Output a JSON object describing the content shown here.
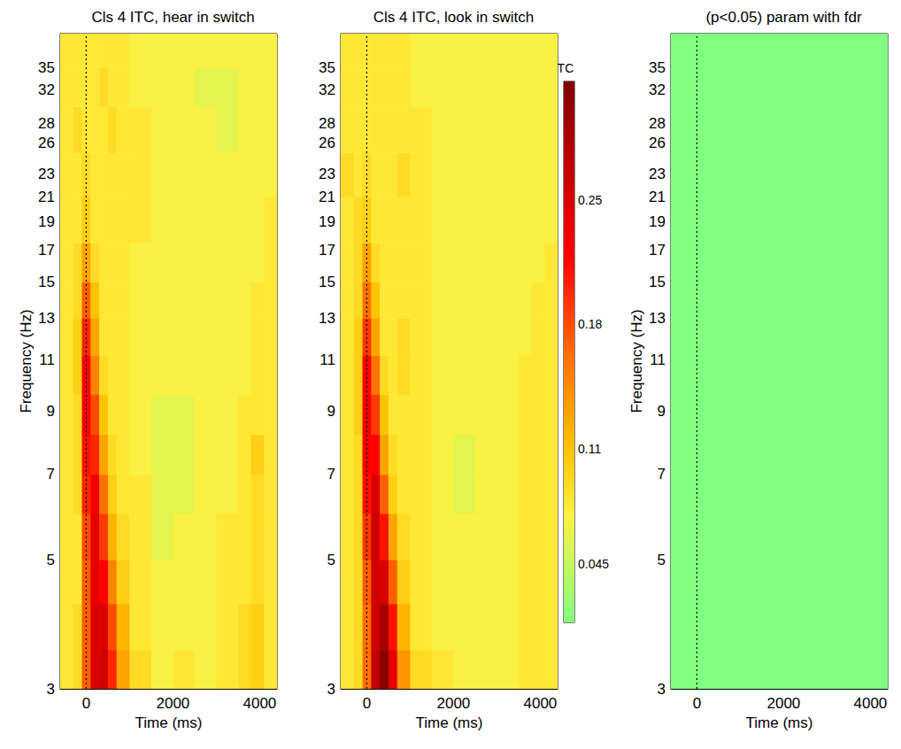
{
  "chart_data": [
    {
      "type": "heatmap",
      "title": "Cls 4 ITC, hear in switch",
      "x_label": "Time (ms)",
      "y_label": "Frequency (Hz)",
      "xlim": [
        -600,
        4400
      ],
      "xticks": [
        0,
        2000,
        4000
      ],
      "ylim": [
        3,
        40
      ],
      "yticks": [
        3,
        5,
        7,
        9,
        11,
        13,
        15,
        17,
        19,
        21,
        23,
        26,
        28,
        32,
        35
      ],
      "log": "y",
      "vlines": [
        0
      ],
      "x_edges": [
        -600,
        -300,
        -100,
        100,
        300,
        500,
        700,
        1000,
        1500,
        2000,
        2500,
        3000,
        3500,
        3800,
        4100,
        4400
      ],
      "y_edges": [
        3,
        3.5,
        4.2,
        5,
        6,
        7,
        8.2,
        9.6,
        11.2,
        13,
        15,
        17.5,
        21,
        25,
        30,
        35,
        40
      ],
      "cells": [
        [
          0.08,
          0.09,
          0.17,
          0.25,
          0.26,
          0.2,
          0.13,
          0.09,
          0.07,
          0.08,
          0.07,
          0.08,
          0.09,
          0.1,
          0.08
        ],
        [
          0.08,
          0.09,
          0.17,
          0.25,
          0.25,
          0.18,
          0.12,
          0.08,
          0.07,
          0.07,
          0.07,
          0.08,
          0.09,
          0.1,
          0.08
        ],
        [
          0.08,
          0.08,
          0.17,
          0.24,
          0.22,
          0.15,
          0.1,
          0.08,
          0.07,
          0.07,
          0.07,
          0.08,
          0.08,
          0.09,
          0.08
        ],
        [
          0.08,
          0.08,
          0.18,
          0.24,
          0.19,
          0.12,
          0.09,
          0.08,
          0.06,
          0.07,
          0.07,
          0.08,
          0.08,
          0.09,
          0.08
        ],
        [
          0.08,
          0.09,
          0.2,
          0.23,
          0.16,
          0.1,
          0.08,
          0.08,
          0.06,
          0.06,
          0.07,
          0.07,
          0.08,
          0.09,
          0.08
        ],
        [
          0.08,
          0.09,
          0.21,
          0.2,
          0.13,
          0.09,
          0.08,
          0.07,
          0.06,
          0.06,
          0.07,
          0.07,
          0.08,
          0.1,
          0.08
        ],
        [
          0.08,
          0.09,
          0.22,
          0.18,
          0.11,
          0.08,
          0.08,
          0.07,
          0.06,
          0.06,
          0.07,
          0.07,
          0.08,
          0.08,
          0.08
        ],
        [
          0.08,
          0.1,
          0.22,
          0.15,
          0.09,
          0.08,
          0.08,
          0.07,
          0.07,
          0.07,
          0.07,
          0.07,
          0.07,
          0.08,
          0.08
        ],
        [
          0.08,
          0.1,
          0.2,
          0.13,
          0.08,
          0.08,
          0.08,
          0.07,
          0.07,
          0.07,
          0.07,
          0.07,
          0.07,
          0.08,
          0.08
        ],
        [
          0.08,
          0.09,
          0.17,
          0.11,
          0.08,
          0.08,
          0.08,
          0.07,
          0.07,
          0.07,
          0.07,
          0.07,
          0.07,
          0.08,
          0.08
        ],
        [
          0.08,
          0.09,
          0.13,
          0.09,
          0.08,
          0.08,
          0.08,
          0.07,
          0.07,
          0.07,
          0.07,
          0.07,
          0.07,
          0.07,
          0.08
        ],
        [
          0.08,
          0.08,
          0.1,
          0.08,
          0.08,
          0.08,
          0.08,
          0.08,
          0.07,
          0.07,
          0.07,
          0.07,
          0.07,
          0.07,
          0.08
        ],
        [
          0.08,
          0.08,
          0.09,
          0.08,
          0.08,
          0.08,
          0.08,
          0.08,
          0.07,
          0.07,
          0.07,
          0.07,
          0.07,
          0.07,
          0.07
        ],
        [
          0.08,
          0.09,
          0.08,
          0.08,
          0.08,
          0.09,
          0.08,
          0.08,
          0.07,
          0.07,
          0.07,
          0.06,
          0.07,
          0.07,
          0.07
        ],
        [
          0.08,
          0.08,
          0.08,
          0.08,
          0.09,
          0.08,
          0.08,
          0.07,
          0.07,
          0.07,
          0.06,
          0.06,
          0.07,
          0.07,
          0.07
        ],
        [
          0.08,
          0.08,
          0.08,
          0.08,
          0.08,
          0.08,
          0.08,
          0.07,
          0.07,
          0.07,
          0.07,
          0.07,
          0.07,
          0.07,
          0.07
        ]
      ]
    },
    {
      "type": "heatmap",
      "title": "Cls 4 ITC, look in switch",
      "x_label": "Time (ms)",
      "xlim": [
        -600,
        4400
      ],
      "xticks": [
        0,
        2000,
        4000
      ],
      "ylim": [
        3,
        40
      ],
      "yticks": [
        3,
        5,
        7,
        9,
        11,
        13,
        15,
        17,
        19,
        21,
        23,
        26,
        28,
        32,
        35
      ],
      "log": "y",
      "vlines": [
        0
      ],
      "x_edges": [
        -600,
        -300,
        -100,
        100,
        300,
        500,
        700,
        1000,
        1500,
        2000,
        2500,
        3000,
        3500,
        3800,
        4100,
        4400
      ],
      "y_edges": [
        3,
        3.5,
        4.2,
        5,
        6,
        7,
        8.2,
        9.6,
        11.2,
        13,
        15,
        17.5,
        21,
        25,
        30,
        35,
        40
      ],
      "cells": [
        [
          0.08,
          0.09,
          0.16,
          0.27,
          0.31,
          0.24,
          0.14,
          0.09,
          0.08,
          0.07,
          0.07,
          0.07,
          0.08,
          0.08,
          0.08
        ],
        [
          0.08,
          0.09,
          0.16,
          0.26,
          0.29,
          0.21,
          0.12,
          0.08,
          0.07,
          0.07,
          0.07,
          0.07,
          0.08,
          0.08,
          0.08
        ],
        [
          0.08,
          0.09,
          0.17,
          0.26,
          0.25,
          0.17,
          0.1,
          0.08,
          0.07,
          0.07,
          0.07,
          0.07,
          0.08,
          0.08,
          0.08
        ],
        [
          0.08,
          0.09,
          0.19,
          0.26,
          0.21,
          0.13,
          0.09,
          0.08,
          0.07,
          0.07,
          0.07,
          0.07,
          0.08,
          0.08,
          0.08
        ],
        [
          0.08,
          0.09,
          0.21,
          0.25,
          0.17,
          0.1,
          0.08,
          0.08,
          0.07,
          0.06,
          0.07,
          0.07,
          0.08,
          0.08,
          0.08
        ],
        [
          0.08,
          0.09,
          0.22,
          0.22,
          0.13,
          0.09,
          0.08,
          0.08,
          0.07,
          0.06,
          0.07,
          0.07,
          0.08,
          0.08,
          0.08
        ],
        [
          0.08,
          0.1,
          0.23,
          0.19,
          0.11,
          0.08,
          0.08,
          0.08,
          0.07,
          0.07,
          0.07,
          0.07,
          0.08,
          0.08,
          0.08
        ],
        [
          0.08,
          0.1,
          0.22,
          0.16,
          0.09,
          0.08,
          0.09,
          0.08,
          0.07,
          0.07,
          0.07,
          0.07,
          0.08,
          0.08,
          0.08
        ],
        [
          0.08,
          0.1,
          0.19,
          0.13,
          0.08,
          0.08,
          0.09,
          0.08,
          0.07,
          0.07,
          0.07,
          0.07,
          0.07,
          0.08,
          0.08
        ],
        [
          0.08,
          0.09,
          0.16,
          0.11,
          0.08,
          0.08,
          0.08,
          0.08,
          0.07,
          0.07,
          0.07,
          0.07,
          0.07,
          0.08,
          0.08
        ],
        [
          0.08,
          0.09,
          0.13,
          0.09,
          0.08,
          0.08,
          0.08,
          0.08,
          0.07,
          0.07,
          0.07,
          0.07,
          0.07,
          0.07,
          0.08
        ],
        [
          0.08,
          0.09,
          0.1,
          0.08,
          0.08,
          0.08,
          0.08,
          0.08,
          0.07,
          0.07,
          0.07,
          0.07,
          0.07,
          0.07,
          0.07
        ],
        [
          0.09,
          0.08,
          0.09,
          0.08,
          0.08,
          0.08,
          0.09,
          0.08,
          0.07,
          0.07,
          0.07,
          0.07,
          0.07,
          0.07,
          0.07
        ],
        [
          0.08,
          0.08,
          0.08,
          0.08,
          0.08,
          0.08,
          0.08,
          0.08,
          0.07,
          0.07,
          0.07,
          0.07,
          0.07,
          0.07,
          0.07
        ],
        [
          0.08,
          0.08,
          0.08,
          0.08,
          0.08,
          0.08,
          0.08,
          0.07,
          0.07,
          0.07,
          0.07,
          0.07,
          0.07,
          0.07,
          0.07
        ],
        [
          0.08,
          0.08,
          0.08,
          0.08,
          0.08,
          0.08,
          0.08,
          0.07,
          0.07,
          0.07,
          0.07,
          0.07,
          0.07,
          0.07,
          0.07
        ]
      ],
      "colorbar": {
        "title": "ITC",
        "range": [
          0.012,
          0.317
        ],
        "ticks": [
          0.045,
          0.11,
          0.18,
          0.25
        ]
      }
    },
    {
      "type": "heatmap",
      "title": "(p<0.05) param with fdr",
      "x_label": "Time (ms)",
      "y_label": "Frequency (Hz)",
      "xlim": [
        -600,
        4400
      ],
      "xticks": [
        0,
        2000,
        4000
      ],
      "ylim": [
        3,
        40
      ],
      "yticks": [
        3,
        5,
        7,
        9,
        11,
        13,
        15,
        17,
        19,
        21,
        23,
        26,
        28,
        32,
        35
      ],
      "log": "y",
      "vlines": [
        0
      ],
      "x_edges": [
        -600,
        4400
      ],
      "y_edges": [
        3,
        40
      ],
      "cells": [
        [
          0
        ]
      ]
    }
  ]
}
